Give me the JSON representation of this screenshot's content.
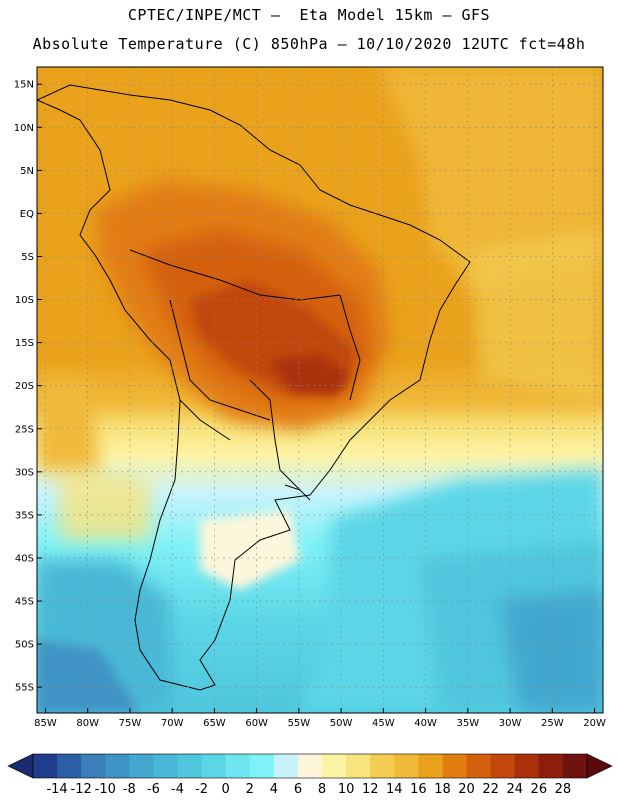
{
  "title": {
    "line1": "CPTEC/INPE/MCT –  Eta Model 15km – GFS",
    "line2": "Absolute Temperature (C) 850hPa – 10/10/2020 12UTC fct=48h"
  },
  "map": {
    "lat_labels": [
      "15N",
      "10N",
      "5N",
      "EQ",
      "5S",
      "10S",
      "15S",
      "20S",
      "25S",
      "30S",
      "35S",
      "40S",
      "45S",
      "50S",
      "55S"
    ],
    "lat_values": [
      15,
      10,
      5,
      0,
      -5,
      -10,
      -15,
      -20,
      -25,
      -30,
      -35,
      -40,
      -45,
      -50,
      -55
    ],
    "lon_labels": [
      "85W",
      "80W",
      "75W",
      "70W",
      "65W",
      "60W",
      "55W",
      "50W",
      "45W",
      "40W",
      "35W",
      "30W",
      "25W",
      "20W"
    ],
    "lon_values": [
      -85,
      -80,
      -75,
      -70,
      -65,
      -60,
      -55,
      -50,
      -45,
      -40,
      -35,
      -30,
      -25,
      -20
    ],
    "lat_range": [
      -58,
      17
    ],
    "lon_range": [
      -86,
      -19
    ],
    "gridlines": "dotted"
  },
  "colorbar": {
    "labels": [
      "-14",
      "-12",
      "-10",
      "-8",
      "-6",
      "-4",
      "-2",
      "0",
      "2",
      "4",
      "6",
      "8",
      "10",
      "12",
      "14",
      "16",
      "18",
      "20",
      "22",
      "24",
      "26",
      "28"
    ],
    "colors": [
      "#1f3d8c",
      "#2b5fa5",
      "#3a7fba",
      "#3f94c6",
      "#43a7cf",
      "#48b8d6",
      "#4fc6dd",
      "#5bd6e6",
      "#6fe6ef",
      "#7ff2f6",
      "#c9f3fb",
      "#fdf6dc",
      "#fdf3a4",
      "#f8e47c",
      "#f2cd52",
      "#f0b93a",
      "#eaa21c",
      "#e27d12",
      "#d4600e",
      "#c1470b",
      "#a9300a",
      "#8c1f0b",
      "#6e1310"
    ],
    "arrow_left_color": "#1a2a70",
    "arrow_right_color": "#5a0a0a"
  }
}
